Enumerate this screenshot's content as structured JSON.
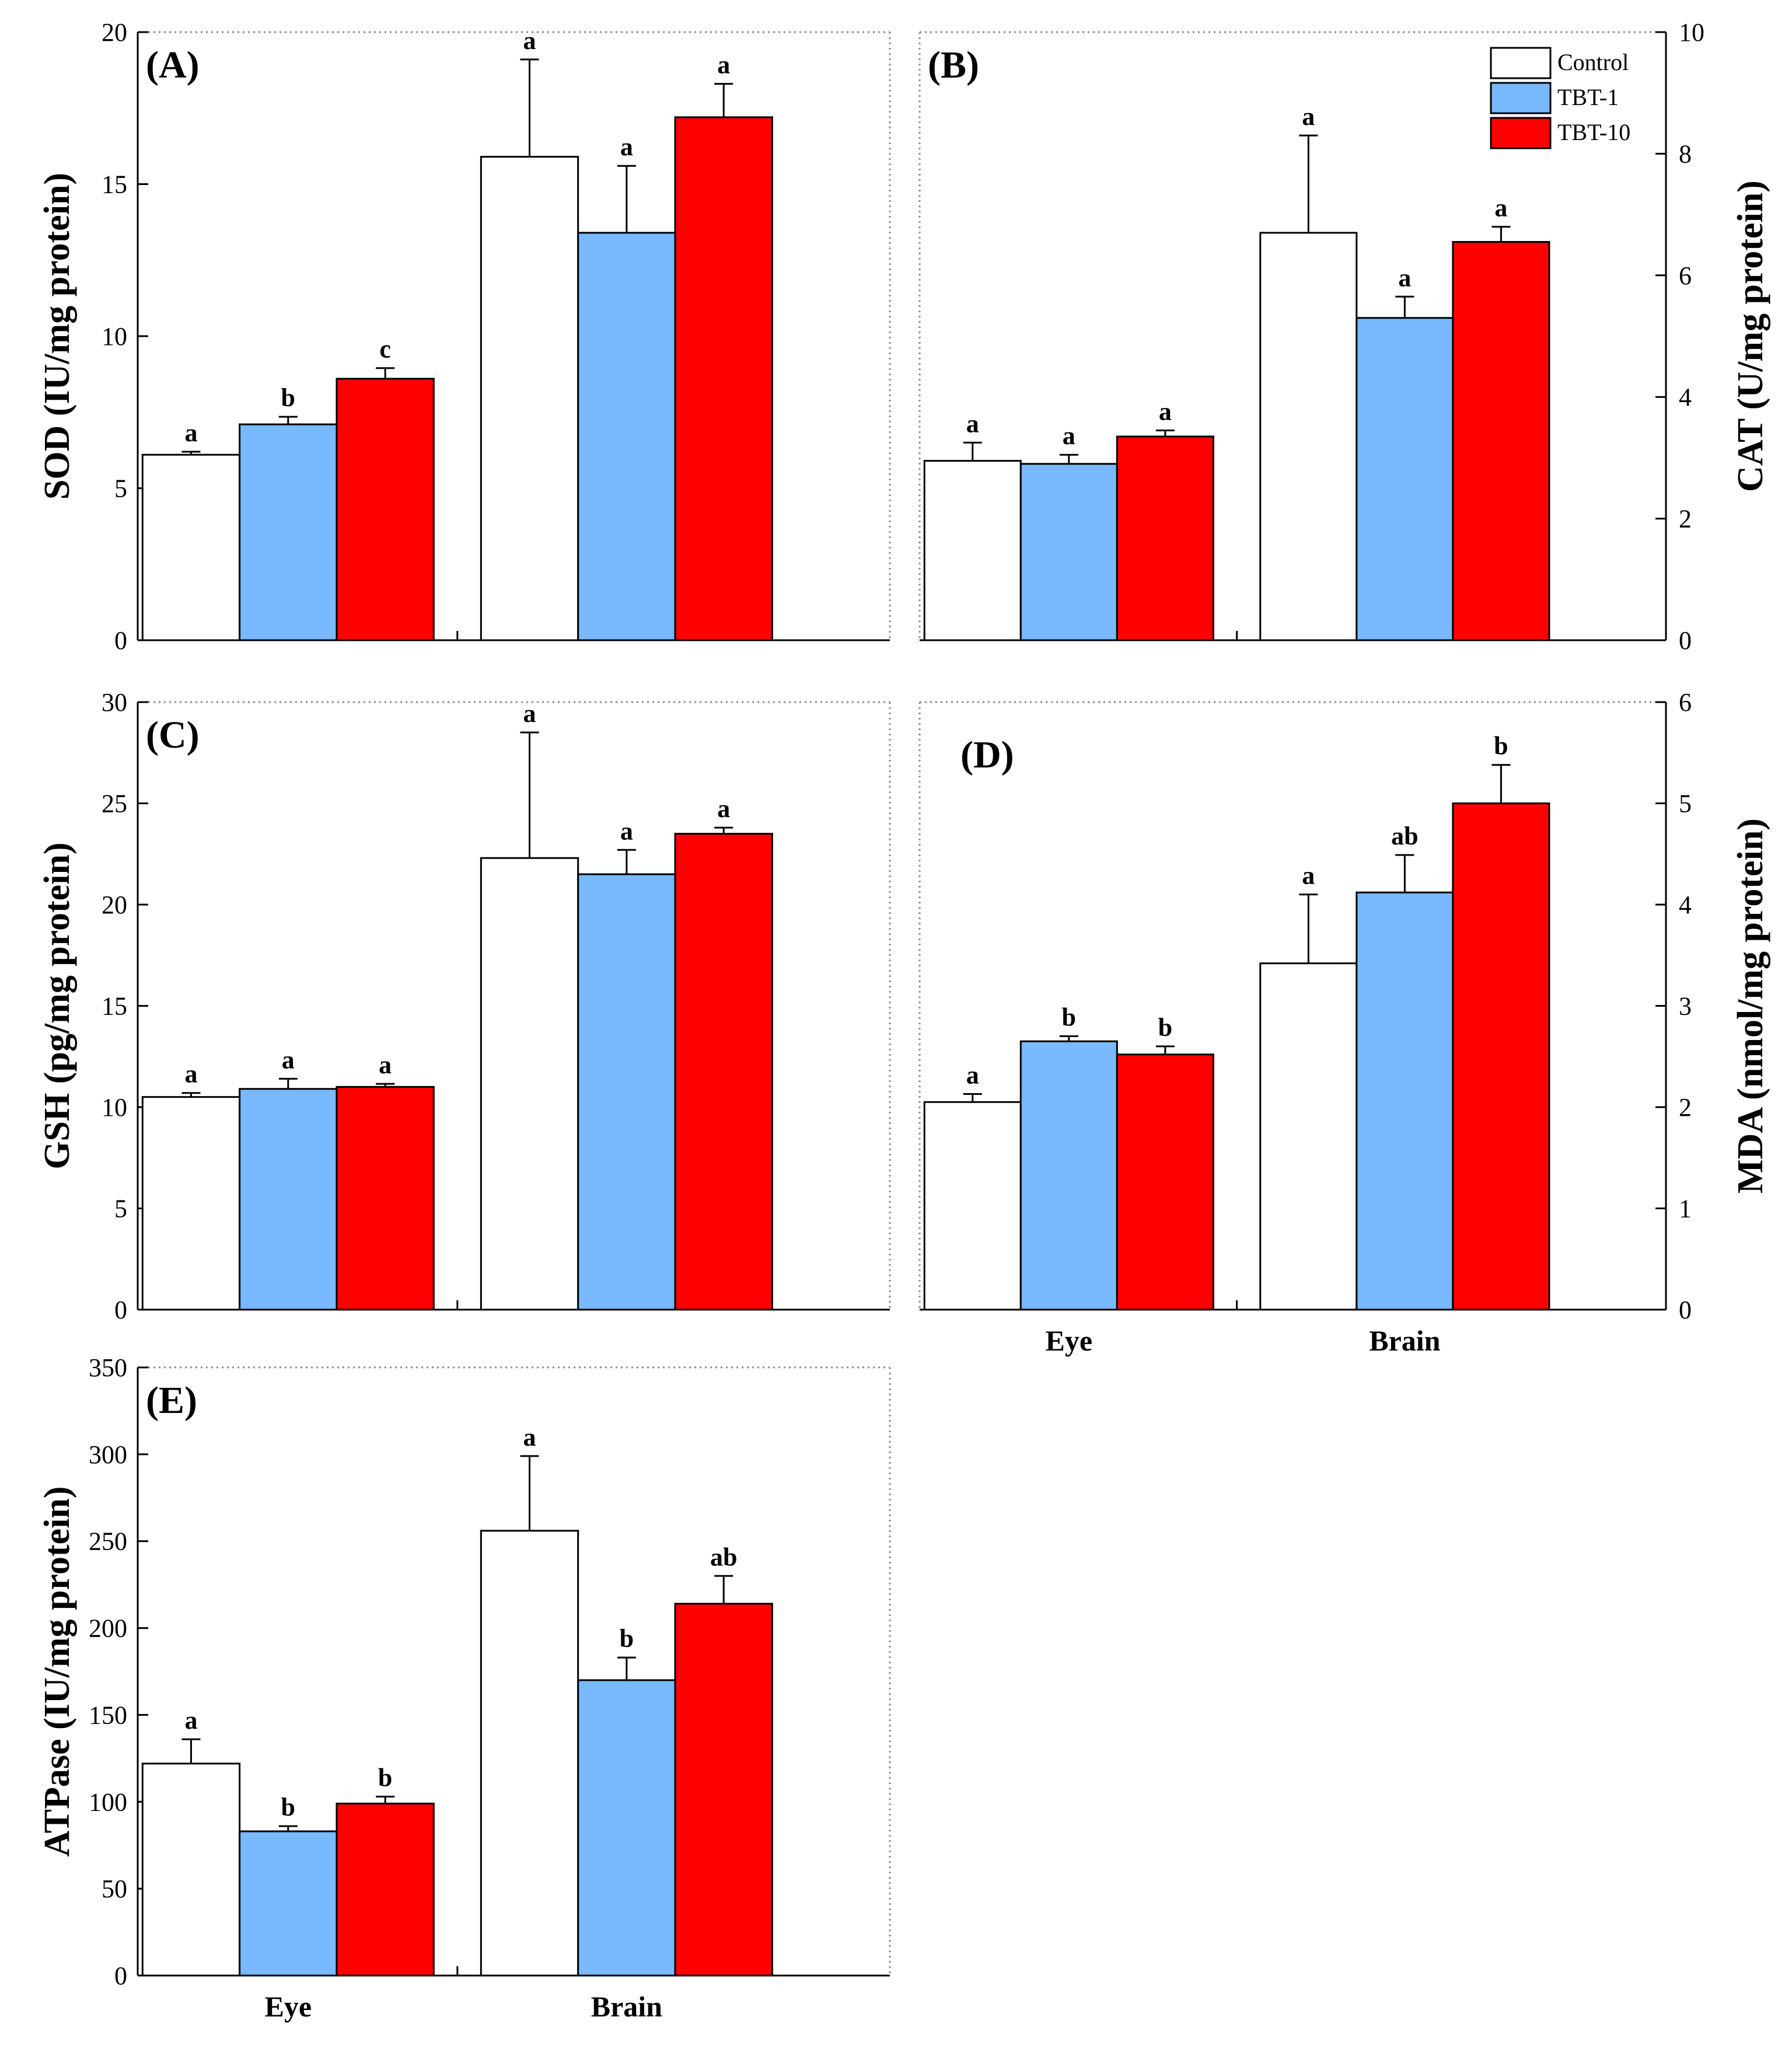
{
  "legend": [
    {
      "name": "Control",
      "color": "#ffffff"
    },
    {
      "name": "TBT-1",
      "color": "#78b9ff"
    },
    {
      "name": "TBT-10",
      "color": "#ff0000"
    }
  ],
  "chart_data": [
    {
      "panel": "(A)",
      "type": "bar",
      "ylabel": "SOD (IU/mg protein)",
      "ylim": [
        0,
        20
      ],
      "yticks": [
        "0",
        "5",
        "10",
        "15",
        "20"
      ],
      "categories": [
        "Eye",
        "Brain"
      ],
      "show_category_labels": false,
      "series": [
        {
          "name": "Control",
          "values": [
            6.1,
            15.9
          ],
          "errors": [
            0.1,
            3.2
          ],
          "labels": [
            "a",
            "a"
          ]
        },
        {
          "name": "TBT-1",
          "values": [
            7.1,
            13.4
          ],
          "errors": [
            0.25,
            2.2
          ],
          "labels": [
            "b",
            "a"
          ]
        },
        {
          "name": "TBT-10",
          "values": [
            8.6,
            17.2
          ],
          "errors": [
            0.35,
            1.1
          ],
          "labels": [
            "c",
            "a"
          ]
        }
      ]
    },
    {
      "panel": "(B)",
      "type": "bar",
      "ylabel": "CAT (U/mg protein)",
      "ylim": [
        0,
        10
      ],
      "yticks": [
        "0",
        "2",
        "4",
        "6",
        "8",
        "10"
      ],
      "categories": [
        "Eye",
        "Brain"
      ],
      "show_category_labels": false,
      "series": [
        {
          "name": "Control",
          "values": [
            2.95,
            6.7
          ],
          "errors": [
            0.3,
            1.6
          ],
          "labels": [
            "a",
            "a"
          ]
        },
        {
          "name": "TBT-1",
          "values": [
            2.9,
            5.3
          ],
          "errors": [
            0.15,
            0.35
          ],
          "labels": [
            "a",
            "a"
          ]
        },
        {
          "name": "TBT-10",
          "values": [
            3.35,
            6.55
          ],
          "errors": [
            0.1,
            0.25
          ],
          "labels": [
            "a",
            "a"
          ]
        }
      ]
    },
    {
      "panel": "(C)",
      "type": "bar",
      "ylabel": "GSH (pg/mg protein)",
      "ylim": [
        0,
        30
      ],
      "yticks": [
        "0",
        "5",
        "10",
        "15",
        "20",
        "25",
        "30"
      ],
      "categories": [
        "Eye",
        "Brain"
      ],
      "show_category_labels": false,
      "series": [
        {
          "name": "Control",
          "values": [
            10.5,
            22.3
          ],
          "errors": [
            0.2,
            6.2
          ],
          "labels": [
            "a",
            "a"
          ]
        },
        {
          "name": "TBT-1",
          "values": [
            10.9,
            21.5
          ],
          "errors": [
            0.5,
            1.2
          ],
          "labels": [
            "a",
            "a"
          ]
        },
        {
          "name": "TBT-10",
          "values": [
            11.0,
            23.5
          ],
          "errors": [
            0.15,
            0.3
          ],
          "labels": [
            "a",
            "a"
          ]
        }
      ]
    },
    {
      "panel": "(D)",
      "type": "bar",
      "ylabel": "MDA (nmol/mg protein)",
      "ylim": [
        0,
        6
      ],
      "yticks": [
        "0",
        "1",
        "2",
        "3",
        "4",
        "5",
        "6"
      ],
      "categories": [
        "Eye",
        "Brain"
      ],
      "show_category_labels": true,
      "series": [
        {
          "name": "Control",
          "values": [
            2.05,
            3.42
          ],
          "errors": [
            0.08,
            0.68
          ],
          "labels": [
            "a",
            "a"
          ]
        },
        {
          "name": "TBT-1",
          "values": [
            2.65,
            4.12
          ],
          "errors": [
            0.05,
            0.37
          ],
          "labels": [
            "b",
            "ab"
          ]
        },
        {
          "name": "TBT-10",
          "values": [
            2.52,
            5.0
          ],
          "errors": [
            0.08,
            0.38
          ],
          "labels": [
            "b",
            "b"
          ]
        }
      ]
    },
    {
      "panel": "(E)",
      "type": "bar",
      "ylabel": "ATPase (IU/mg protein)",
      "ylim": [
        0,
        350
      ],
      "yticks": [
        "0",
        "50",
        "100",
        "150",
        "200",
        "250",
        "300",
        "350"
      ],
      "categories": [
        "Eye",
        "Brain"
      ],
      "show_category_labels": true,
      "series": [
        {
          "name": "Control",
          "values": [
            122,
            256
          ],
          "errors": [
            14,
            43
          ],
          "labels": [
            "a",
            "a"
          ]
        },
        {
          "name": "TBT-1",
          "values": [
            83,
            170
          ],
          "errors": [
            3,
            13
          ],
          "labels": [
            "b",
            "b"
          ]
        },
        {
          "name": "TBT-10",
          "values": [
            99,
            214
          ],
          "errors": [
            4,
            16
          ],
          "labels": [
            "b",
            "ab"
          ]
        }
      ]
    }
  ]
}
